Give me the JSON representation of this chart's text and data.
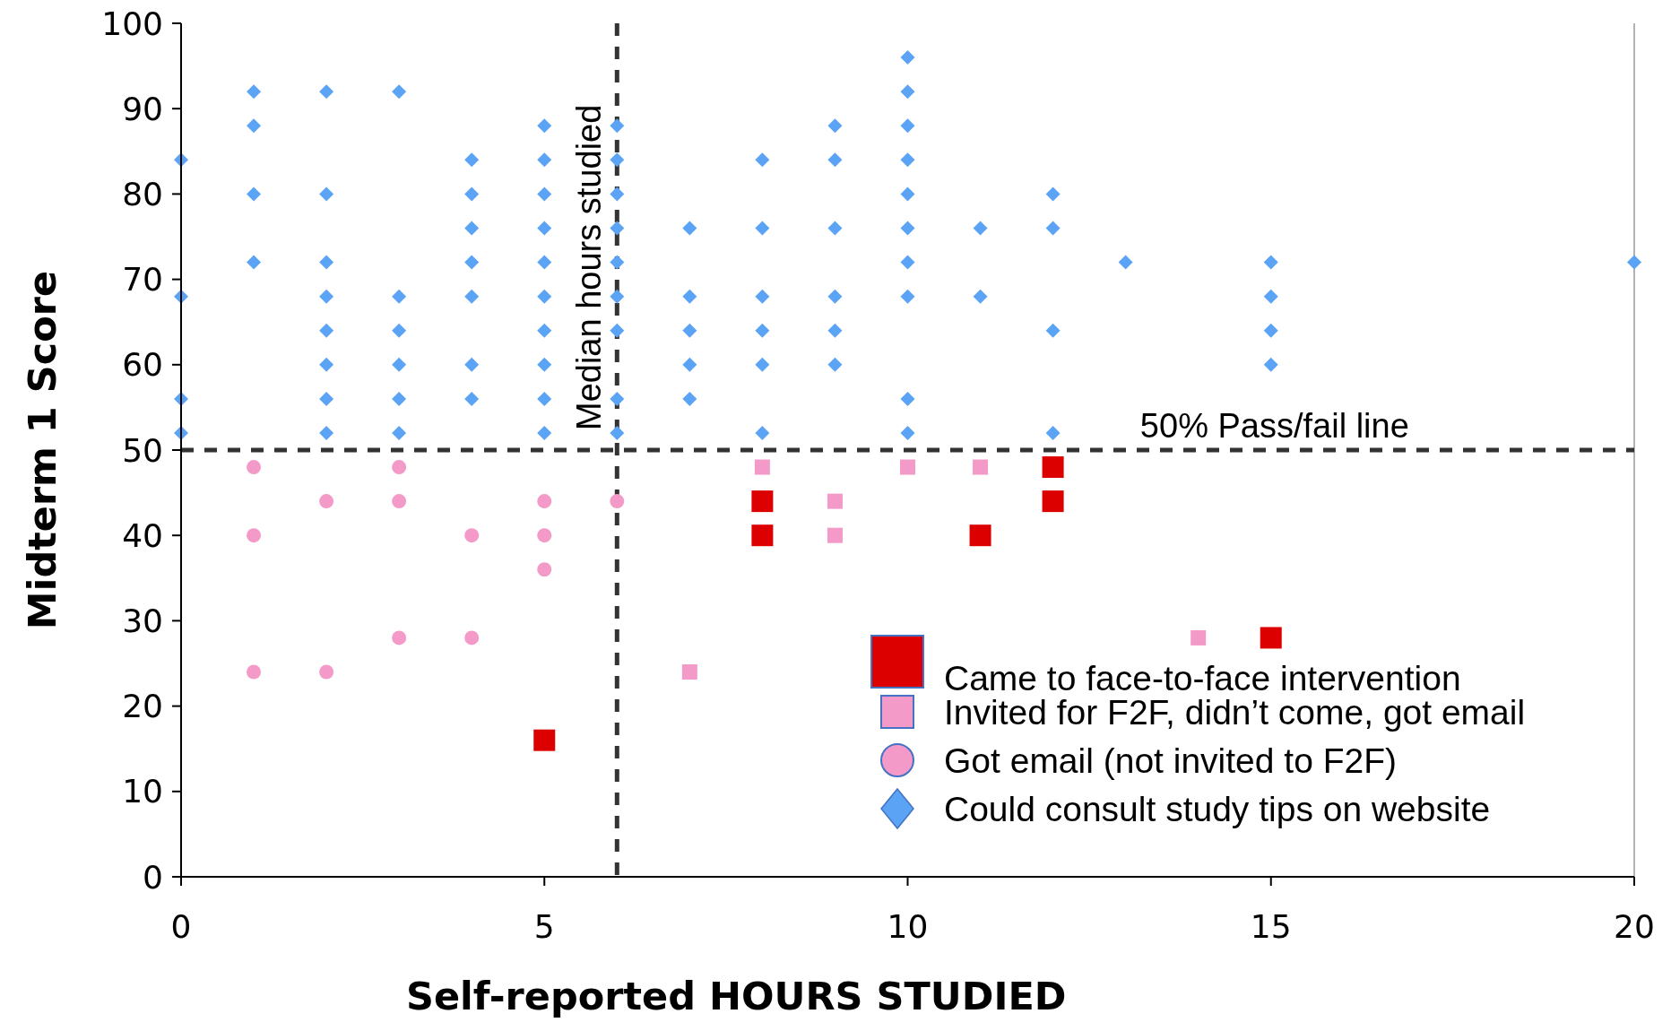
{
  "chart_data": {
    "type": "scatter",
    "xlabel": "Self-reported HOURS STUDIED",
    "ylabel": "Midterm 1 Score",
    "xlim": [
      0,
      20
    ],
    "ylim": [
      0,
      100
    ],
    "xticks": [
      0,
      5,
      10,
      15,
      20
    ],
    "yticks": [
      0,
      10,
      20,
      30,
      40,
      50,
      60,
      70,
      80,
      90,
      100
    ],
    "grid": false,
    "legend": "bottom right",
    "ref_lines": [
      {
        "axis": "x",
        "value": 6,
        "label": "Median hours studied",
        "line_style": "dashed",
        "color": "#333333"
      },
      {
        "axis": "y",
        "value": 50,
        "label": "50% Pass/fail line",
        "line_style": "dashed",
        "color": "#333333"
      }
    ],
    "series": [
      {
        "name": "Came to face-to-face intervention",
        "color": "#dd0000",
        "marker": "square",
        "x": [
          5,
          8,
          8,
          11,
          12,
          12,
          15
        ],
        "values": [
          16,
          44,
          40,
          40,
          48,
          44,
          28
        ]
      },
      {
        "name": "Invited for F2F, didn’t come, got email",
        "color": "#f49ac8",
        "marker": "square",
        "x": [
          7,
          8,
          9,
          9,
          10,
          11,
          14
        ],
        "values": [
          24,
          48,
          44,
          40,
          48,
          48,
          28
        ]
      },
      {
        "name": "Got email (not invited to F2F)",
        "color": "#f49ac8",
        "marker": "circle",
        "x": [
          1,
          1,
          1,
          2,
          2,
          3,
          3,
          3,
          4,
          4,
          5,
          5,
          5,
          6
        ],
        "values": [
          48,
          40,
          24,
          44,
          24,
          48,
          44,
          28,
          40,
          28,
          44,
          40,
          36,
          44
        ]
      },
      {
        "name": "Could consult study tips on website",
        "color": "#5ba3f5",
        "marker": "diamond",
        "x": [
          0,
          0,
          0,
          0,
          1,
          1,
          1,
          1,
          2,
          2,
          2,
          2,
          2,
          2,
          2,
          2,
          3,
          3,
          3,
          3,
          3,
          3,
          4,
          4,
          4,
          4,
          4,
          4,
          4,
          5,
          5,
          5,
          5,
          5,
          5,
          5,
          5,
          5,
          5,
          6,
          6,
          6,
          6,
          6,
          6,
          6,
          6,
          6,
          7,
          7,
          7,
          7,
          7,
          8,
          8,
          8,
          8,
          8,
          8,
          9,
          9,
          9,
          9,
          9,
          9,
          10,
          10,
          10,
          10,
          10,
          10,
          10,
          10,
          10,
          10,
          11,
          11,
          12,
          12,
          12,
          12,
          13,
          15,
          15,
          15,
          15,
          20
        ],
        "values": [
          84,
          68,
          56,
          52,
          92,
          88,
          80,
          72,
          92,
          80,
          72,
          68,
          64,
          60,
          56,
          52,
          92,
          68,
          64,
          60,
          56,
          52,
          84,
          80,
          76,
          72,
          68,
          60,
          56,
          88,
          84,
          80,
          76,
          72,
          68,
          64,
          60,
          56,
          52,
          88,
          84,
          80,
          76,
          72,
          68,
          64,
          56,
          52,
          76,
          68,
          64,
          60,
          56,
          84,
          76,
          68,
          64,
          60,
          52,
          88,
          84,
          76,
          68,
          64,
          60,
          96,
          92,
          88,
          84,
          80,
          76,
          72,
          68,
          56,
          52,
          76,
          68,
          80,
          76,
          64,
          52,
          72,
          72,
          68,
          64,
          60,
          72
        ]
      }
    ]
  }
}
